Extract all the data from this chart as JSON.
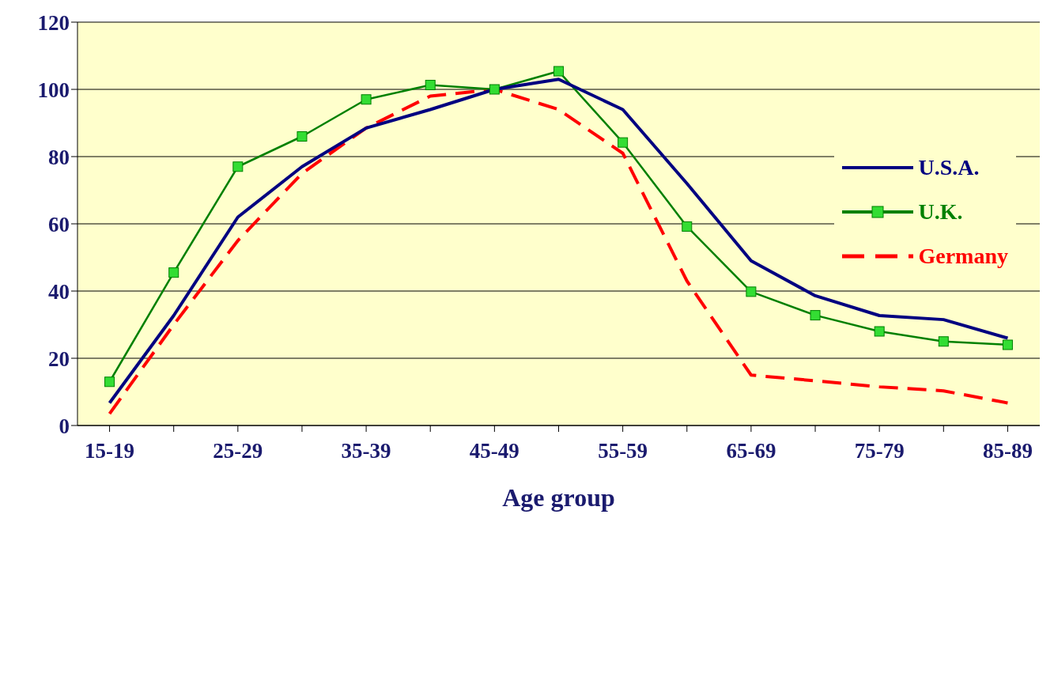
{
  "chart_data": {
    "type": "line",
    "xlabel": "Age group",
    "categories": [
      "15-19",
      null,
      "25-29",
      null,
      "35-39",
      null,
      "45-49",
      null,
      "55-59",
      null,
      "65-69",
      null,
      "75-79",
      null,
      "85-89"
    ],
    "series": [
      {
        "name": "U.S.A.",
        "color": "#000080",
        "marker": "none",
        "line_style": "solid",
        "values": [
          6.7,
          32.7,
          62,
          77,
          88.5,
          94,
          100,
          103,
          94,
          72,
          49,
          38.6,
          32.7,
          31.5,
          26
        ]
      },
      {
        "name": "U.K.",
        "color": "#008000",
        "marker": "square",
        "line_style": "solid",
        "values": [
          13,
          45.5,
          77,
          86,
          97,
          101.3,
          100,
          105.4,
          84.2,
          59.2,
          39.8,
          32.8,
          28,
          25,
          24
        ]
      },
      {
        "name": "Germany",
        "color": "#ff0000",
        "marker": "none",
        "line_style": "dashed",
        "values": [
          3.5,
          30,
          55,
          75,
          88.5,
          98,
          100,
          94,
          81,
          43,
          15,
          13.3,
          11.5,
          10.3,
          6.7
        ]
      }
    ],
    "ylim": [
      0,
      120
    ],
    "yticks": [
      0,
      20,
      40,
      60,
      80,
      100,
      120
    ],
    "grid": "y",
    "legend": "top right"
  }
}
